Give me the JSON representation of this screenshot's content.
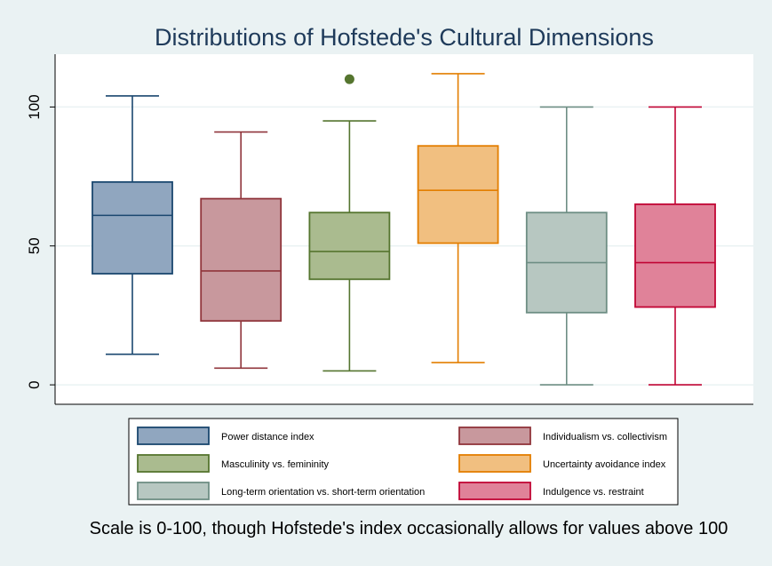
{
  "chart_data": {
    "type": "box",
    "title": "Distributions of Hofstede's Cultural Dimensions",
    "note": "Scale is 0-100, though Hofstede's index occasionally allows for values above 100",
    "ylim": [
      -7,
      119
    ],
    "yticks": [
      0,
      50,
      100
    ],
    "grid": true,
    "legend_position": "bottom",
    "series": [
      {
        "name": "Power distance index",
        "color": "#1a476f",
        "fill": "#90a6bf",
        "min": 11,
        "q1": 40,
        "median": 61,
        "q3": 73,
        "max": 104,
        "outliers": []
      },
      {
        "name": "Individualism vs. collectivism",
        "color": "#90353b",
        "fill": "#c8989d",
        "min": 6,
        "q1": 23,
        "median": 41,
        "q3": 67,
        "max": 91,
        "outliers": []
      },
      {
        "name": "Masculinity vs. femininity",
        "color": "#55752f",
        "fill": "#aabb8f",
        "min": 5,
        "q1": 38,
        "median": 48,
        "q3": 62,
        "max": 95,
        "outliers": [
          110
        ]
      },
      {
        "name": "Uncertainty avoidance index",
        "color": "#e37e00",
        "fill": "#f1bf80",
        "min": 8,
        "q1": 51,
        "median": 70,
        "q3": 86,
        "max": 112,
        "outliers": []
      },
      {
        "name": "Long-term orientation vs. short-term orientation",
        "color": "#6e8e84",
        "fill": "#b7c7c1",
        "min": 0,
        "q1": 26,
        "median": 44,
        "q3": 62,
        "max": 100,
        "outliers": []
      },
      {
        "name": "Indulgence vs. restraint",
        "color": "#c10534",
        "fill": "#e08299",
        "min": 0,
        "q1": 28,
        "median": 44,
        "q3": 65,
        "max": 100,
        "outliers": []
      }
    ]
  }
}
